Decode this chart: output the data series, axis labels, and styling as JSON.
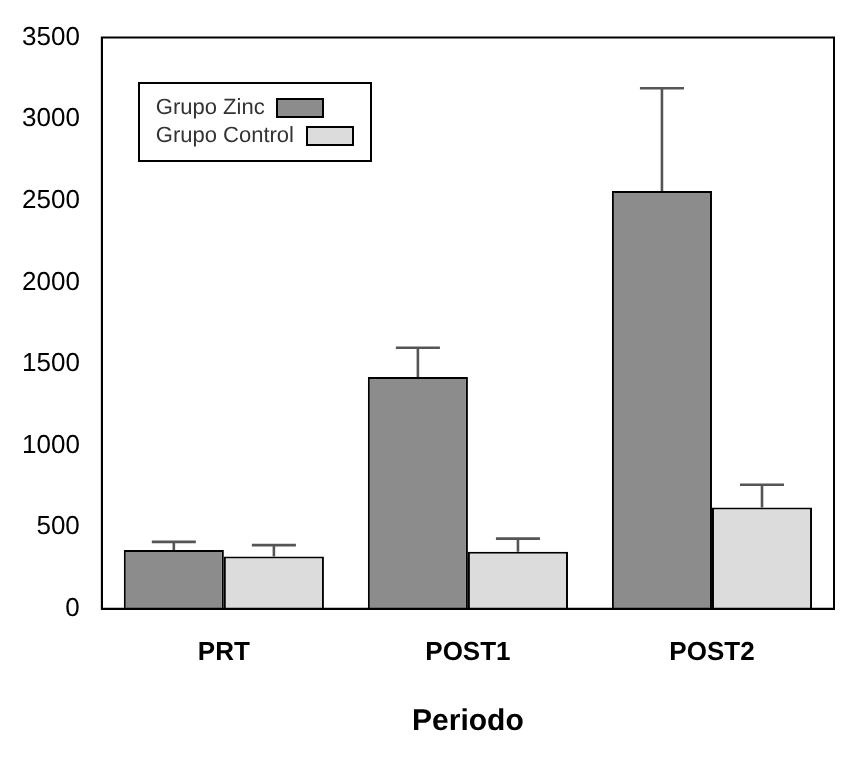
{
  "chart_data": {
    "type": "bar",
    "xlabel": "Periodo",
    "categories": [
      "PRT",
      "POST1",
      "POST2"
    ],
    "series": [
      {
        "name": "Grupo Zinc",
        "color": "#8c8c8c",
        "values": [
          360,
          1420,
          2560
        ],
        "errors": [
          [
            360,
            410
          ],
          [
            1420,
            1600
          ],
          [
            2560,
            3190
          ]
        ]
      },
      {
        "name": "Grupo Control",
        "color": "#dcdcdc",
        "values": [
          320,
          350,
          620
        ],
        "errors": [
          [
            320,
            390
          ],
          [
            350,
            430
          ],
          [
            620,
            760
          ]
        ]
      }
    ],
    "ylim": [
      0,
      3500
    ],
    "yticks": [
      0,
      500,
      1000,
      1500,
      2000,
      2500,
      3000,
      3500
    ],
    "grid": false,
    "legend": "top left"
  }
}
